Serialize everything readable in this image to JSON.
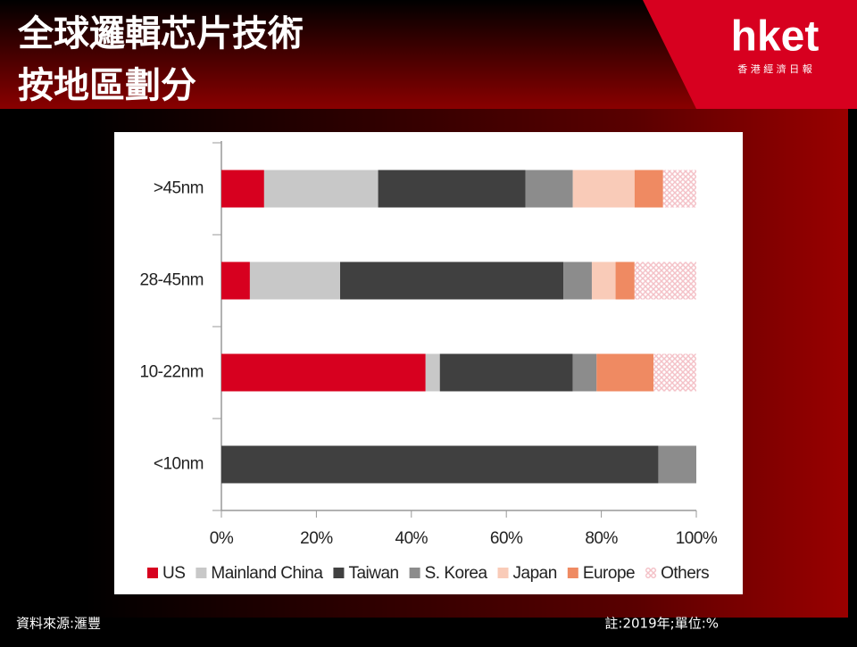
{
  "slide": {
    "title_lines": [
      "全球邏輯芯片技術",
      "按地區劃分"
    ],
    "logo": "hket",
    "logo_subtitle": "香 港 經 濟 日 報",
    "source": "資料來源:滙豐",
    "note": "註:2019年;單位:%"
  },
  "chart_data": {
    "type": "stacked-barh",
    "categories": [
      ">45nm",
      "28-45nm",
      "10-22nm",
      "<10nm"
    ],
    "series": [
      {
        "name": "US",
        "color": "#d7001f",
        "values": [
          9,
          6,
          43,
          0
        ]
      },
      {
        "name": "Mainland China",
        "color": "#c8c8c8",
        "values": [
          24,
          19,
          3,
          0
        ]
      },
      {
        "name": "Taiwan",
        "color": "#404040",
        "values": [
          31,
          47,
          28,
          92
        ]
      },
      {
        "name": "S. Korea",
        "color": "#8c8c8c",
        "values": [
          10,
          6,
          5,
          8
        ]
      },
      {
        "name": "Japan",
        "color": "#f9cbb8",
        "values": [
          13,
          5,
          0,
          0
        ]
      },
      {
        "name": "Europe",
        "color": "#ef8a62",
        "values": [
          6,
          4,
          12,
          0
        ]
      },
      {
        "name": "Others",
        "color": "#f4c2c8",
        "values": [
          7,
          13,
          9,
          0
        ]
      }
    ],
    "xlim": [
      0,
      100
    ],
    "xticks": [
      {
        "value": 0,
        "label": "0%"
      },
      {
        "value": 20,
        "label": "20%"
      },
      {
        "value": 40,
        "label": "40%"
      },
      {
        "value": 60,
        "label": "60%"
      },
      {
        "value": 80,
        "label": "80%"
      },
      {
        "value": 100,
        "label": "100%"
      }
    ],
    "legend": "bottom"
  }
}
